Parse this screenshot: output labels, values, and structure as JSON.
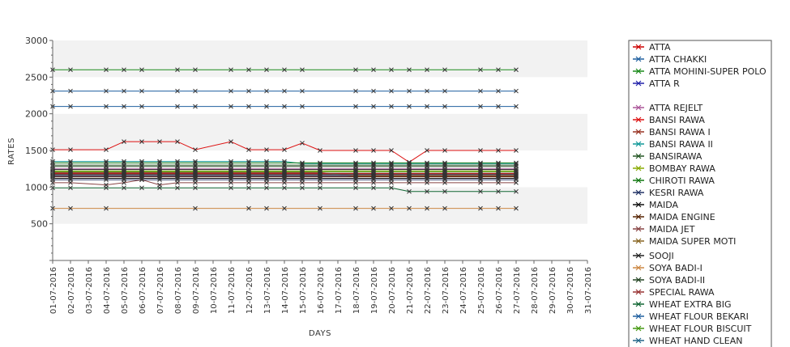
{
  "chart_data": {
    "type": "line",
    "title": "",
    "xlabel": "DAYS",
    "ylabel": "RATES",
    "ylim": [
      0,
      3000
    ],
    "y_ticks": [
      500,
      1000,
      1500,
      2000,
      2500,
      3000
    ],
    "y_tick_labels": [
      "500",
      "1000",
      "1500",
      "2000",
      "2500",
      "3000"
    ],
    "grid": "alternating horizontal bands",
    "legend_position": "right",
    "categories": [
      "01-07-2016",
      "02-07-2016",
      "03-07-2016",
      "04-07-2016",
      "05-07-2016",
      "06-07-2016",
      "07-07-2016",
      "08-07-2016",
      "09-07-2016",
      "10-07-2016",
      "11-07-2016",
      "12-07-2016",
      "13-07-2016",
      "14-07-2016",
      "15-07-2016",
      "16-07-2016",
      "17-07-2016",
      "18-07-2016",
      "19-07-2016",
      "20-07-2016",
      "21-07-2016",
      "22-07-2016",
      "23-07-2016",
      "24-07-2016",
      "25-07-2016",
      "26-07-2016",
      "27-07-2016",
      "28-07-2016",
      "29-07-2016",
      "30-07-2016",
      "31-07-2016"
    ],
    "series": [
      {
        "name": "ATTA",
        "color": "#cc0000",
        "values": [
          1180,
          1180,
          null,
          1180,
          1180,
          1180,
          1180,
          1180,
          1180,
          null,
          1180,
          1180,
          1180,
          1180,
          1180,
          1180,
          null,
          1180,
          1180,
          1180,
          1180,
          1180,
          1180,
          null,
          1180,
          1180,
          1180,
          null,
          null,
          null,
          null
        ]
      },
      {
        "name": "ATTA CHAKKI",
        "color": "#1f5f9f",
        "values": [
          2310,
          2310,
          null,
          2310,
          2310,
          2310,
          null,
          2310,
          2310,
          null,
          2310,
          2310,
          2310,
          2310,
          2310,
          null,
          null,
          2310,
          2310,
          2310,
          2310,
          2310,
          2310,
          null,
          2310,
          2310,
          2310,
          null,
          null,
          null,
          null
        ]
      },
      {
        "name": "ATTA MOHINI-SUPER POLO",
        "color": "#1a8a1a",
        "values": [
          2600,
          2600,
          null,
          2600,
          2600,
          2600,
          null,
          2600,
          2600,
          null,
          2600,
          2600,
          2600,
          2600,
          2600,
          null,
          null,
          2600,
          2600,
          2600,
          2600,
          2600,
          2600,
          null,
          2600,
          2600,
          2600,
          null,
          null,
          null,
          null
        ]
      },
      {
        "name": "ATTA R",
        "color": "#2222aa",
        "values": [
          1150,
          1150,
          null,
          1150,
          1150,
          1150,
          1150,
          1150,
          1150,
          null,
          1150,
          1150,
          1150,
          1150,
          1150,
          1150,
          null,
          1150,
          1150,
          1150,
          1150,
          1150,
          1150,
          null,
          1150,
          1150,
          1150,
          null,
          null,
          null,
          null
        ]
      },
      {
        "name": "ATTA REJELT",
        "color": "#aa5599",
        "values": [
          1250,
          1250,
          null,
          1250,
          1250,
          1250,
          1250,
          1250,
          1250,
          null,
          1250,
          1250,
          1250,
          1250,
          1250,
          1250,
          null,
          1250,
          1250,
          1250,
          1250,
          1250,
          1250,
          null,
          1250,
          1250,
          1250,
          null,
          null,
          null,
          null
        ]
      },
      {
        "name": "BANSI RAWA",
        "color": "#dd1111",
        "values": [
          1510,
          1510,
          null,
          1510,
          1620,
          1620,
          1620,
          1620,
          1510,
          null,
          1620,
          1510,
          1510,
          1510,
          1600,
          1500,
          null,
          1500,
          1500,
          1500,
          1340,
          1500,
          1500,
          null,
          1500,
          1500,
          1500,
          null,
          null,
          null,
          null
        ]
      },
      {
        "name": "BANSI RAWA I",
        "color": "#993322",
        "values": [
          1200,
          1200,
          null,
          1200,
          1200,
          1200,
          1200,
          1200,
          1200,
          null,
          1200,
          1200,
          1200,
          1200,
          1200,
          1200,
          null,
          1150,
          1150,
          1150,
          1150,
          1150,
          1150,
          null,
          1150,
          1150,
          1150,
          null,
          null,
          null,
          null
        ]
      },
      {
        "name": "BANSI RAWA II",
        "color": "#119999",
        "values": [
          1350,
          1350,
          null,
          1350,
          1350,
          1350,
          1350,
          1350,
          1350,
          null,
          1350,
          1350,
          1350,
          1350,
          1320,
          1320,
          null,
          1320,
          1320,
          1320,
          1320,
          1320,
          1320,
          null,
          1320,
          1320,
          1320,
          null,
          null,
          null,
          null
        ]
      },
      {
        "name": "BANSIRAWA",
        "color": "#225522",
        "values": [
          1300,
          1300,
          null,
          1300,
          1300,
          1300,
          1300,
          1300,
          1300,
          null,
          1300,
          1300,
          1300,
          1300,
          1300,
          1300,
          null,
          1300,
          1300,
          1300,
          1300,
          1300,
          1300,
          null,
          1300,
          1300,
          1300,
          null,
          null,
          null,
          null
        ]
      },
      {
        "name": "BOMBAY RAWA",
        "color": "#88aa00",
        "values": [
          1220,
          1220,
          null,
          1220,
          1220,
          1220,
          1220,
          1220,
          1220,
          null,
          1220,
          1220,
          1220,
          1220,
          1220,
          1220,
          null,
          1220,
          1220,
          1220,
          1220,
          1220,
          1220,
          null,
          1220,
          1220,
          1220,
          null,
          null,
          null,
          null
        ]
      },
      {
        "name": "CHIROTI RAWA",
        "color": "#117711",
        "values": [
          1330,
          1330,
          null,
          1330,
          1330,
          1330,
          1330,
          1330,
          1330,
          null,
          1330,
          1330,
          1330,
          1330,
          1330,
          1330,
          null,
          1330,
          1330,
          1330,
          1330,
          1330,
          1330,
          null,
          1330,
          1330,
          1330,
          null,
          null,
          null,
          null
        ]
      },
      {
        "name": "KESRI RAWA",
        "color": "#223366",
        "values": [
          1100,
          1100,
          null,
          1100,
          1100,
          1100,
          1100,
          1100,
          1100,
          null,
          1100,
          1100,
          1100,
          1100,
          1100,
          1100,
          null,
          1100,
          1100,
          1100,
          1100,
          1100,
          1100,
          null,
          1100,
          1100,
          1100,
          null,
          null,
          null,
          null
        ]
      },
      {
        "name": "MAIDA",
        "color": "#111111",
        "values": [
          1120,
          1120,
          null,
          1120,
          1120,
          1120,
          1120,
          1120,
          1120,
          null,
          1120,
          1120,
          1120,
          1120,
          1120,
          1120,
          null,
          1120,
          1120,
          1120,
          1120,
          1120,
          1120,
          null,
          1120,
          1120,
          1120,
          null,
          null,
          null,
          null
        ]
      },
      {
        "name": "MAIDA ENGINE",
        "color": "#552200",
        "values": [
          1140,
          1140,
          null,
          1140,
          1140,
          1140,
          1140,
          1140,
          1140,
          null,
          1140,
          1140,
          1140,
          1140,
          1140,
          1140,
          null,
          1140,
          1140,
          1140,
          1140,
          1140,
          1140,
          null,
          1140,
          1140,
          1140,
          null,
          null,
          null,
          null
        ]
      },
      {
        "name": "MAIDA JET",
        "color": "#884444",
        "values": [
          1060,
          1060,
          null,
          1030,
          1060,
          1100,
          1030,
          1060,
          1060,
          null,
          1060,
          1060,
          1060,
          1060,
          1060,
          1060,
          null,
          1060,
          1060,
          1060,
          1060,
          1060,
          1060,
          null,
          1060,
          1060,
          1060,
          null,
          null,
          null,
          null
        ]
      },
      {
        "name": "MAIDA SUPER MOTI",
        "color": "#886622",
        "values": [
          1160,
          1160,
          null,
          1160,
          1160,
          1160,
          1160,
          1160,
          1160,
          null,
          1160,
          1160,
          1160,
          1160,
          1160,
          1160,
          null,
          1160,
          1160,
          1160,
          1160,
          1160,
          1160,
          null,
          1160,
          1160,
          1160,
          null,
          null,
          null,
          null
        ]
      },
      {
        "name": "SOOJI",
        "color": "#222222",
        "values": [
          1240,
          1240,
          null,
          1240,
          1240,
          1240,
          1240,
          1240,
          1240,
          null,
          1240,
          1240,
          1240,
          1240,
          1240,
          1240,
          null,
          1240,
          1240,
          1240,
          1240,
          1240,
          1240,
          null,
          1240,
          1240,
          1240,
          null,
          null,
          null,
          null
        ]
      },
      {
        "name": "SOYA BADI-I",
        "color": "#cc8844",
        "values": [
          710,
          710,
          null,
          710,
          null,
          null,
          null,
          null,
          710,
          null,
          null,
          710,
          710,
          710,
          null,
          710,
          null,
          710,
          710,
          710,
          710,
          710,
          710,
          null,
          710,
          710,
          710,
          null,
          null,
          null,
          null
        ]
      },
      {
        "name": "SOYA BADI-II",
        "color": "#224422",
        "values": [
          1280,
          1280,
          null,
          1280,
          1280,
          1280,
          1280,
          1280,
          1280,
          null,
          1280,
          1280,
          1280,
          1280,
          1280,
          1280,
          null,
          1280,
          1280,
          1280,
          1280,
          1280,
          1280,
          null,
          1280,
          1280,
          1280,
          null,
          null,
          null,
          null
        ]
      },
      {
        "name": "SPECIAL RAWA",
        "color": "#993333",
        "values": [
          1190,
          1190,
          null,
          1190,
          1190,
          1190,
          1190,
          1190,
          1190,
          null,
          1190,
          1190,
          1190,
          1190,
          1190,
          1190,
          null,
          1190,
          1190,
          1190,
          1190,
          1190,
          1190,
          null,
          1190,
          1190,
          1190,
          null,
          null,
          null,
          null
        ]
      },
      {
        "name": "WHEAT EXTRA BIG",
        "color": "#116633",
        "values": [
          990,
          990,
          null,
          990,
          990,
          990,
          990,
          990,
          990,
          null,
          990,
          990,
          990,
          990,
          990,
          990,
          null,
          990,
          990,
          990,
          940,
          940,
          940,
          null,
          940,
          940,
          940,
          null,
          null,
          null,
          null
        ]
      },
      {
        "name": "WHEAT FLOUR BEKARI",
        "color": "#1f5f9f",
        "values": [
          2100,
          2100,
          null,
          2100,
          2100,
          2100,
          null,
          2100,
          2100,
          null,
          2100,
          2100,
          2100,
          2100,
          2100,
          null,
          null,
          2100,
          2100,
          2100,
          2100,
          2100,
          2100,
          null,
          2100,
          2100,
          2100,
          null,
          null,
          null,
          null
        ]
      },
      {
        "name": "WHEAT FLOUR BISCUIT",
        "color": "#449911",
        "values": [
          1210,
          1210,
          null,
          1210,
          1210,
          1210,
          1210,
          1210,
          1210,
          null,
          1210,
          1210,
          1210,
          1210,
          1210,
          1210,
          null,
          1210,
          1210,
          1210,
          1210,
          1210,
          1210,
          null,
          1210,
          1210,
          1210,
          null,
          null,
          null,
          null
        ]
      },
      {
        "name": "WHEAT HAND CLEAN",
        "color": "#226688",
        "values": [
          1170,
          1170,
          null,
          1170,
          1170,
          1170,
          1170,
          1170,
          1170,
          null,
          1170,
          1170,
          1170,
          1170,
          1170,
          1170,
          null,
          1170,
          1170,
          1170,
          1170,
          1170,
          1170,
          null,
          1170,
          1170,
          1170,
          null,
          null,
          null,
          null
        ]
      }
    ]
  }
}
